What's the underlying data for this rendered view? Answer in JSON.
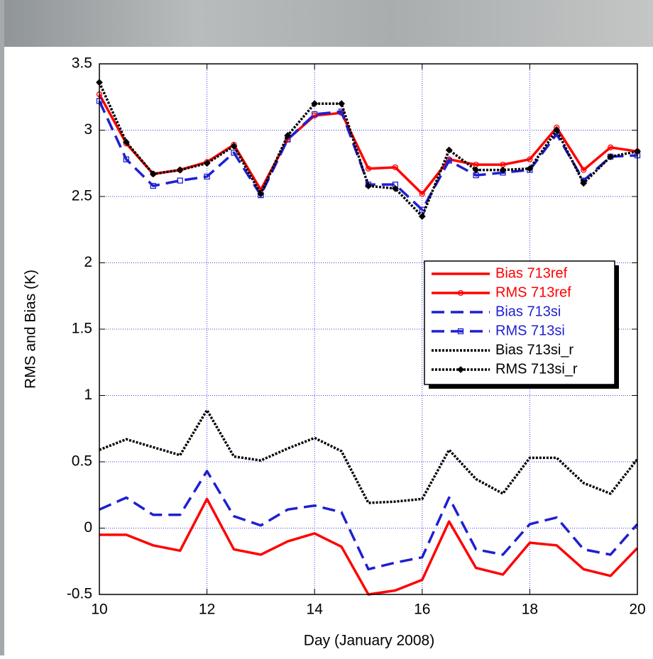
{
  "chart_data": {
    "type": "line",
    "x_label": "Day (January 2008)",
    "y_label": "RMS and Bias (K)",
    "x": [
      10,
      10.5,
      11,
      11.5,
      12,
      12.5,
      13,
      13.5,
      14,
      14.5,
      15,
      15.5,
      16,
      16.5,
      17,
      17.5,
      18,
      18.5,
      19,
      19.5,
      20
    ],
    "series": [
      {
        "name": "Bias 713ref",
        "color": "#ff0000",
        "line_style": "solid",
        "marker": "none",
        "values": [
          -0.05,
          -0.05,
          -0.13,
          -0.17,
          0.22,
          -0.16,
          -0.2,
          -0.1,
          -0.04,
          -0.14,
          -0.5,
          -0.47,
          -0.39,
          0.05,
          -0.3,
          -0.35,
          -0.11,
          -0.13,
          -0.31,
          -0.36,
          -0.15
        ]
      },
      {
        "name": "RMS 713ref",
        "color": "#ff0000",
        "line_style": "solid",
        "marker": "circle",
        "values": [
          3.27,
          2.9,
          2.67,
          2.7,
          2.76,
          2.89,
          2.55,
          2.93,
          3.11,
          3.13,
          2.71,
          2.72,
          2.52,
          2.78,
          2.74,
          2.74,
          2.78,
          3.02,
          2.7,
          2.87,
          2.84
        ]
      },
      {
        "name": "Bias 713si",
        "color": "#1f1fd0",
        "line_style": "dashed",
        "marker": "none",
        "values": [
          0.14,
          0.23,
          0.1,
          0.1,
          0.43,
          0.09,
          0.02,
          0.14,
          0.17,
          0.12,
          -0.31,
          -0.26,
          -0.22,
          0.23,
          -0.16,
          -0.2,
          0.03,
          0.08,
          -0.16,
          -0.2,
          0.03
        ]
      },
      {
        "name": "RMS 713si",
        "color": "#1f1fd0",
        "line_style": "dashed",
        "marker": "square",
        "values": [
          3.22,
          2.78,
          2.58,
          2.62,
          2.65,
          2.83,
          2.51,
          2.93,
          3.12,
          3.14,
          2.59,
          2.59,
          2.4,
          2.77,
          2.66,
          2.68,
          2.7,
          2.97,
          2.62,
          2.8,
          2.81
        ]
      },
      {
        "name": "Bias 713si_r",
        "color": "#000000",
        "line_style": "dotted",
        "marker": "none",
        "values": [
          0.59,
          0.67,
          0.61,
          0.55,
          0.89,
          0.54,
          0.51,
          0.6,
          0.68,
          0.58,
          0.19,
          0.2,
          0.22,
          0.59,
          0.37,
          0.26,
          0.53,
          0.53,
          0.34,
          0.26,
          0.52
        ]
      },
      {
        "name": "RMS 713si_r",
        "color": "#000000",
        "line_style": "dotted",
        "marker": "diamond",
        "values": [
          3.36,
          2.91,
          2.67,
          2.7,
          2.75,
          2.88,
          2.52,
          2.96,
          3.2,
          3.2,
          2.58,
          2.56,
          2.35,
          2.85,
          2.7,
          2.7,
          2.71,
          3.0,
          2.6,
          2.8,
          2.84
        ]
      }
    ],
    "xlim": [
      10,
      20
    ],
    "xticks": [
      10,
      12,
      14,
      16,
      18,
      20
    ],
    "ylim": [
      -0.5,
      3.5
    ],
    "yticks": [
      -0.5,
      0,
      0.5,
      1,
      1.5,
      2,
      2.5,
      3,
      3.5
    ],
    "grid": true,
    "legend": "right"
  }
}
